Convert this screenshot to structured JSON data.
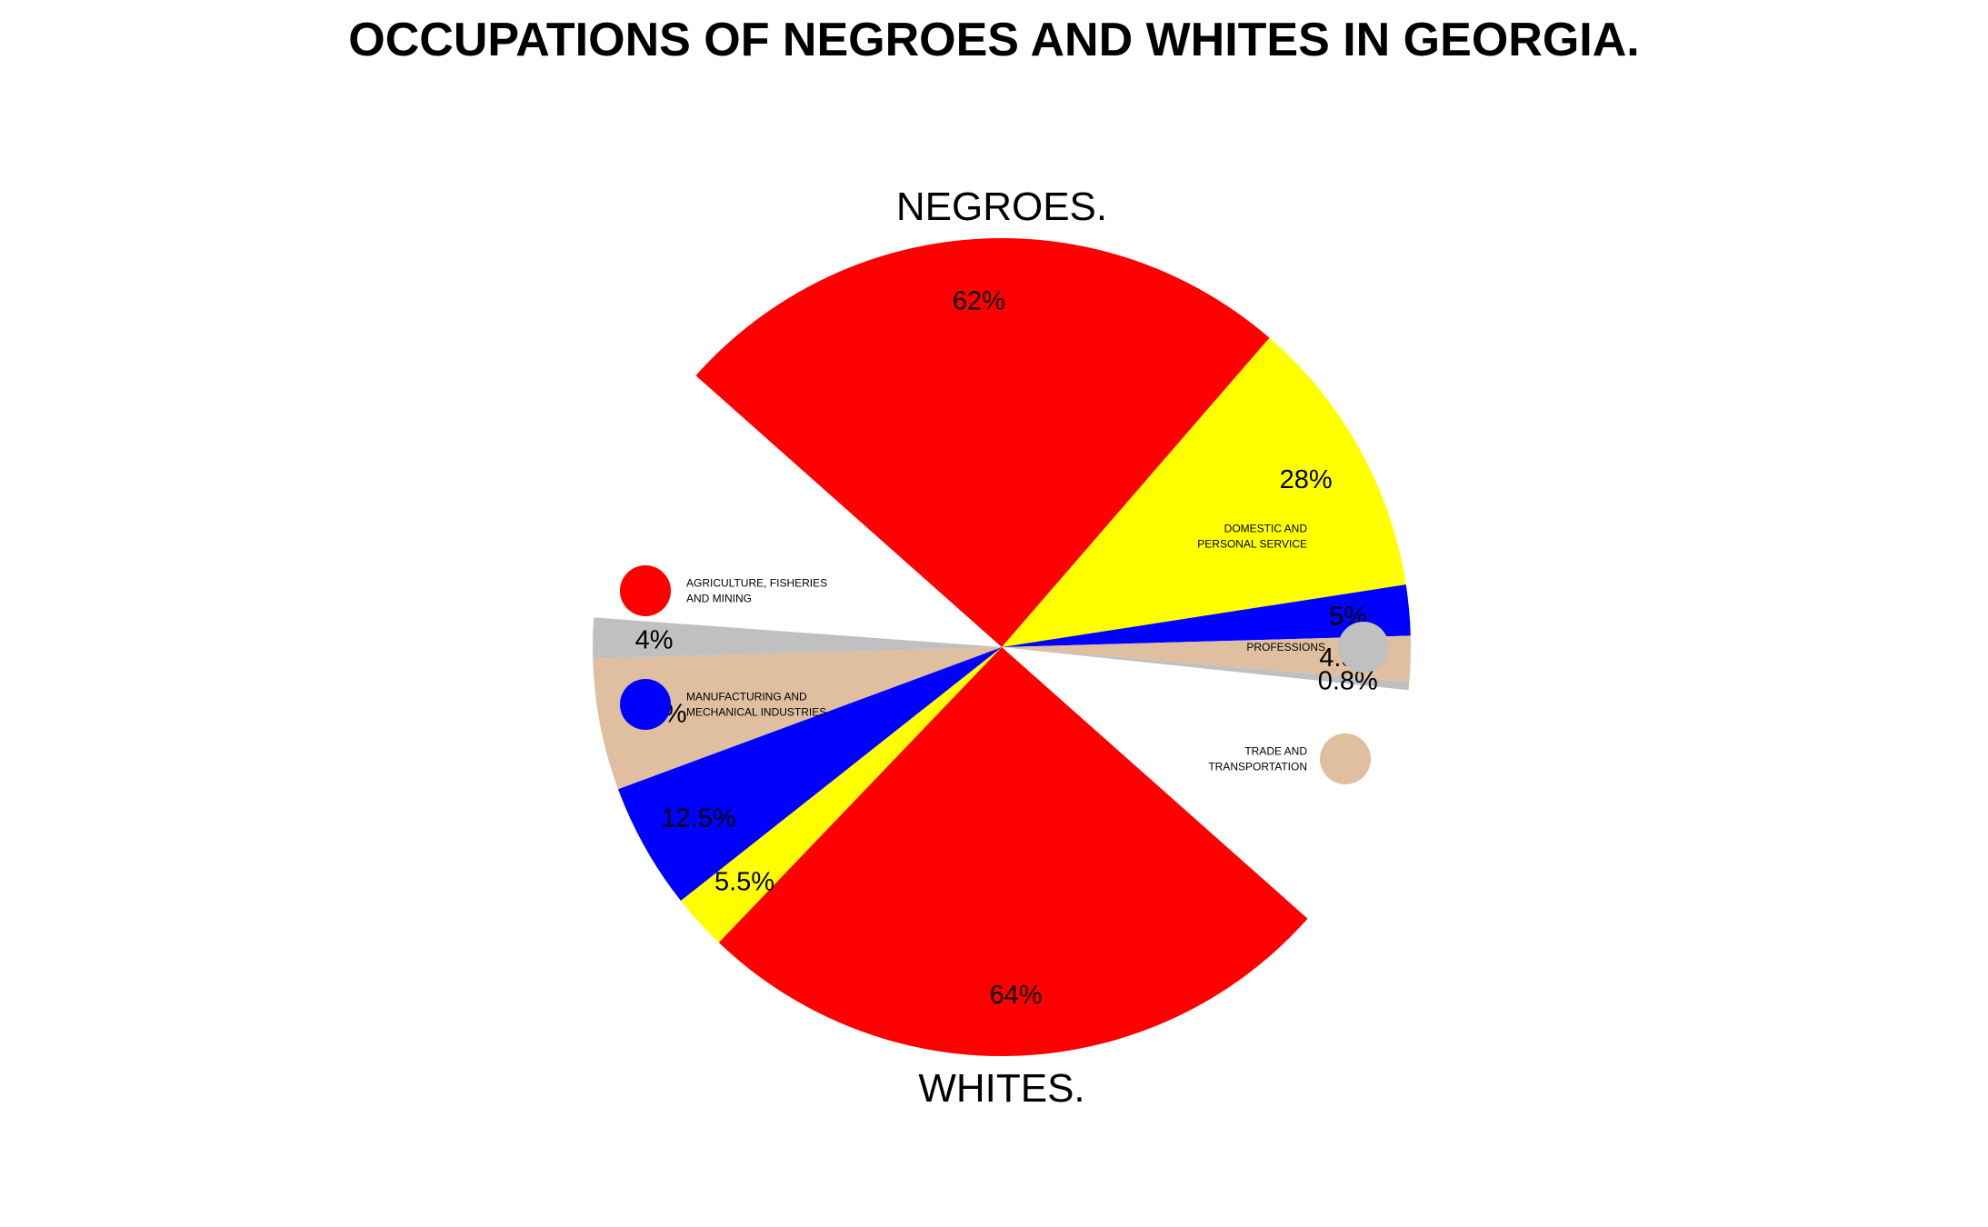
{
  "title": "OCCUPATIONS OF NEGROES AND WHITES IN GEORGIA.",
  "chart_data": {
    "type": "pie",
    "categories": [
      "AGRICULTURE, FISHERIES AND MINING",
      "DOMESTIC AND PERSONAL SERVICE",
      "MANUFACTURING AND MECHANICAL INDUSTRIES",
      "TRADE AND TRANSPORTATION",
      "PROFESSIONS"
    ],
    "colors": [
      "#ff0000",
      "#ffff00",
      "#0000ff",
      "#dfbf9f",
      "#c0c0c0"
    ],
    "series": [
      {
        "name": "NEGROES.",
        "values": [
          62,
          28,
          5,
          4.5,
          0.8
        ],
        "labels": [
          "62%",
          "28%",
          "5%",
          "4.5%",
          "0.8%"
        ]
      },
      {
        "name": "WHITES.",
        "values": [
          64,
          5.5,
          12.5,
          13,
          4
        ],
        "labels": [
          "64%",
          "5.5%",
          "12.5%",
          "13%",
          "4%"
        ]
      }
    ],
    "legend": {
      "left": [
        {
          "lines": [
            "AGRICULTURE, FISHERIES",
            " AND MINING"
          ],
          "color": "#ff0000"
        },
        {
          "lines": [
            "MANUFACTURING AND",
            " MECHANICAL INDUSTRIES"
          ],
          "color": "#0000ff"
        }
      ],
      "right": [
        {
          "lines": [
            "DOMESTIC AND",
            "PERSONAL SERVICE"
          ],
          "color": "#ffff00"
        },
        {
          "lines": [
            "PROFESSIONS"
          ],
          "color": "#c0c0c0"
        },
        {
          "lines": [
            "TRADE AND",
            "TRANSPORTATION"
          ],
          "color": "#dfbf9f"
        }
      ]
    }
  }
}
